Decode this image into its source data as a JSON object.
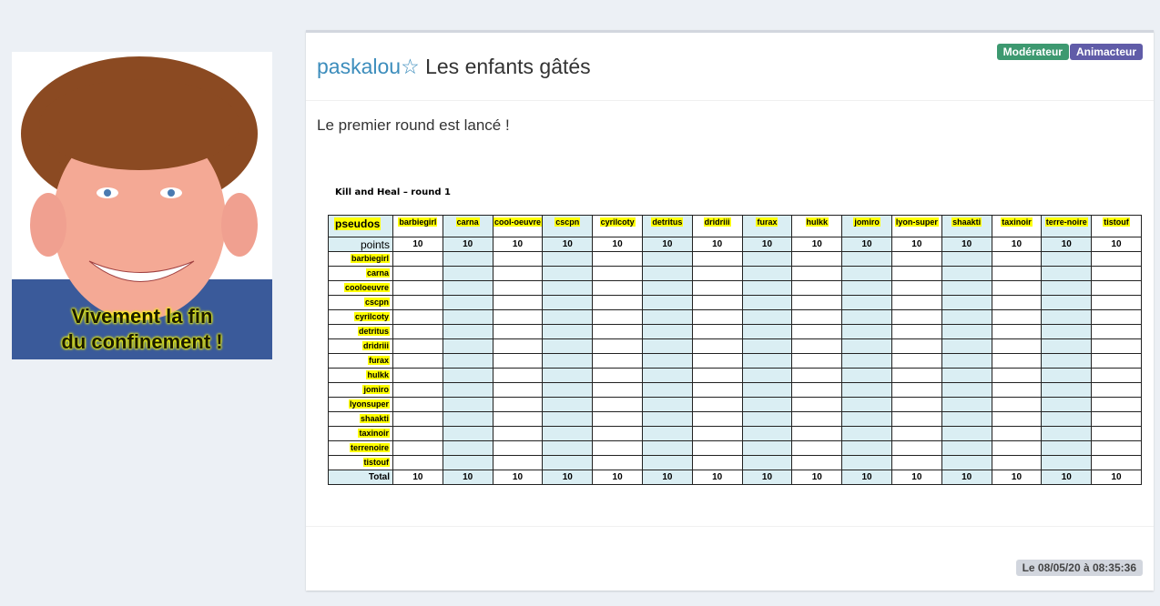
{
  "avatar": {
    "caption_line1": "Vivement la fin",
    "caption_line2": "du confinement !"
  },
  "post": {
    "username": "paskalou",
    "star_icon": "☆",
    "title": "Les enfants gâtés",
    "message": "Le premier round est lancé !",
    "date": "Le 08/05/20 à 08:35:36"
  },
  "badges": [
    {
      "label": "Modérateur",
      "color": "#3d9970"
    },
    {
      "label": "Animacteur",
      "color": "#605ca8"
    }
  ],
  "sheet": {
    "title": "Kill and Heal – round 1",
    "corner": "pseudos",
    "points_label": "points",
    "total_label": "Total",
    "columns": [
      "barbiegirl",
      "carna",
      "cool-oeuvre",
      "cscpn",
      "cyrilcoty",
      "detritus",
      "dridriii",
      "furax",
      "hulkk",
      "jomiro",
      "lyon-super",
      "shaakti",
      "taxinoir",
      "terre-noire",
      "tistouf"
    ],
    "rows": [
      "barbiegirl",
      "carna",
      "cooloeuvre",
      "cscpn",
      "cyrilcoty",
      "detritus",
      "dridriii",
      "furax",
      "hulkk",
      "jomiro",
      "lyonsuper",
      "shaakti",
      "taxinoir",
      "terrenoire",
      "tistouf"
    ],
    "points": [
      10,
      10,
      10,
      10,
      10,
      10,
      10,
      10,
      10,
      10,
      10,
      10,
      10,
      10,
      10
    ],
    "totals": [
      10,
      10,
      10,
      10,
      10,
      10,
      10,
      10,
      10,
      10,
      10,
      10,
      10,
      10,
      10
    ]
  }
}
